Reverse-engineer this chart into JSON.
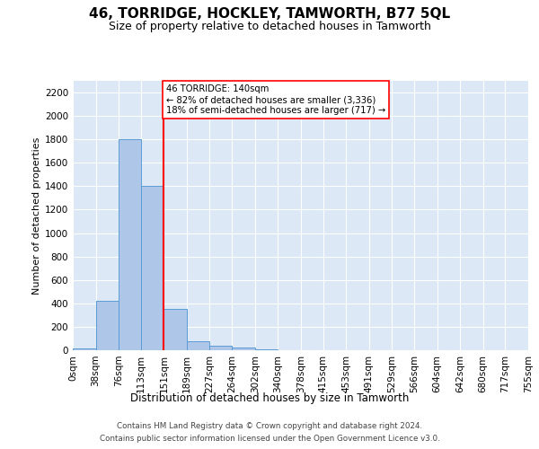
{
  "title": "46, TORRIDGE, HOCKLEY, TAMWORTH, B77 5QL",
  "subtitle": "Size of property relative to detached houses in Tamworth",
  "xlabel": "Distribution of detached houses by size in Tamworth",
  "ylabel": "Number of detached properties",
  "annotation_text": "46 TORRIDGE: 140sqm\n← 82% of detached houses are smaller (3,336)\n18% of semi-detached houses are larger (717) →",
  "bin_edges": [
    0,
    38,
    76,
    113,
    151,
    189,
    227,
    264,
    302,
    340,
    378,
    415,
    453,
    491,
    529,
    566,
    604,
    642,
    680,
    717,
    755
  ],
  "bin_counts": [
    15,
    420,
    1800,
    1400,
    350,
    80,
    35,
    20,
    5,
    0,
    0,
    0,
    0,
    0,
    0,
    0,
    0,
    0,
    0,
    0
  ],
  "bar_color": "#aec6e8",
  "bar_edge_color": "#5b9bd5",
  "vline_x": 151,
  "vline_color": "red",
  "ylim_max": 2300,
  "yticks": [
    0,
    200,
    400,
    600,
    800,
    1000,
    1200,
    1400,
    1600,
    1800,
    2000,
    2200
  ],
  "background_color": "#dce8f5",
  "title_fontsize": 11,
  "subtitle_fontsize": 9,
  "ylabel_fontsize": 8,
  "xlabel_fontsize": 8.5,
  "tick_fontsize": 7.5,
  "footer_line1": "Contains HM Land Registry data © Crown copyright and database right 2024.",
  "footer_line2": "Contains public sector information licensed under the Open Government Licence v3.0."
}
